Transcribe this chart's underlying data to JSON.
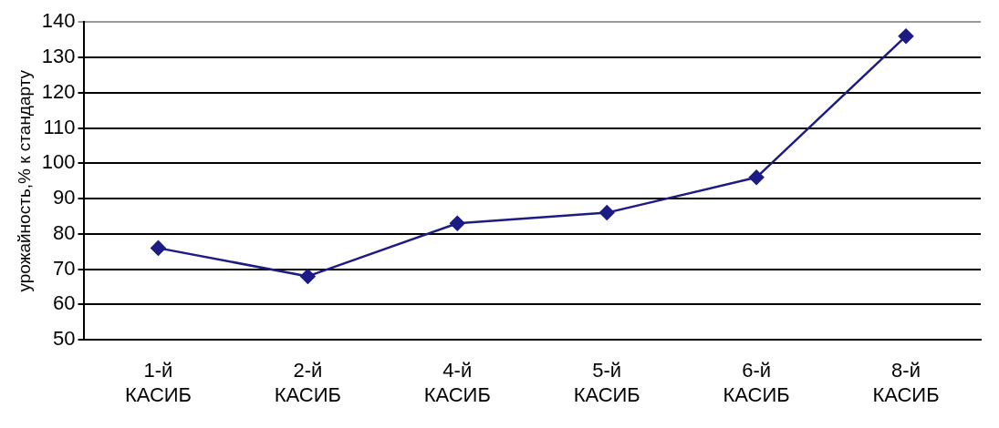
{
  "chart_data": {
    "type": "line",
    "ylabel": "урожайность,% к стандарту",
    "categories": [
      "1-й КАСИБ",
      "2-й КАСИБ",
      "4-й КАСИБ",
      "5-й КАСИБ",
      "6-й КАСИБ",
      "8-й КАСИБ"
    ],
    "series": [
      {
        "color": "#1c1c84",
        "values": [
          76,
          68,
          83,
          86,
          96,
          136
        ]
      }
    ],
    "ylim": [
      50,
      140
    ],
    "yticks": [
      50,
      60,
      70,
      80,
      90,
      100,
      110,
      120,
      130,
      140
    ],
    "grid": "y",
    "legend": false,
    "marker": "diamond",
    "line_style": "solid"
  }
}
